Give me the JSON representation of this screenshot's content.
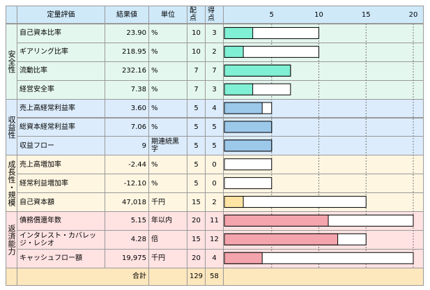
{
  "header": {
    "columns": [
      "定量評価",
      "結果値",
      "単位",
      "配点",
      "得点"
    ]
  },
  "chart": {
    "xlim": [
      0,
      20
    ],
    "xticks": [
      5,
      10,
      15,
      20
    ]
  },
  "groups": [
    {
      "label": "安全性",
      "fill": "#80f0d4",
      "background": "#e4f7ee",
      "rows": [
        {
          "item": "自己資本比率",
          "result": "23.90",
          "unit": "%",
          "max": 10,
          "score": 3
        },
        {
          "item": "ギアリング比率",
          "result": "218.95",
          "unit": "%",
          "max": 10,
          "score": 2
        },
        {
          "item": "流動比率",
          "result": "232.16",
          "unit": "%",
          "max": 7,
          "score": 7
        },
        {
          "item": "経営安全率",
          "result": "7.38",
          "unit": "%",
          "max": 7,
          "score": 3
        }
      ]
    },
    {
      "label": "収益性",
      "fill": "#9cc8ea",
      "background": "#dcecfc",
      "rows": [
        {
          "item": "売上高経常利益率",
          "result": "3.60",
          "unit": "%",
          "max": 5,
          "score": 4
        },
        {
          "item": "総資本経常利益率",
          "result": "7.06",
          "unit": "%",
          "max": 5,
          "score": 5
        },
        {
          "item": "収益フロー",
          "result": "9",
          "unit": "期連続黒字",
          "max": 5,
          "score": 5
        }
      ]
    },
    {
      "label": "成長性・規模",
      "fill": "#ffe4a4",
      "background": "#fff6e2",
      "rows": [
        {
          "item": "売上高増加率",
          "result": "-2.44",
          "unit": "%",
          "max": 5,
          "score": 0
        },
        {
          "item": "経常利益増加率",
          "result": "-12.10",
          "unit": "%",
          "max": 5,
          "score": 0
        },
        {
          "item": "自己資本額",
          "result": "47,018",
          "unit": "千円",
          "max": 15,
          "score": 2
        }
      ]
    },
    {
      "label": "返済能力",
      "fill": "#f4a4ac",
      "background": "#ffe2e2",
      "rows": [
        {
          "item": "債務償還年数",
          "result": "5.15",
          "unit": "年以内",
          "max": 20,
          "score": 11
        },
        {
          "item": "インタレスト・カバレッジ・レシオ",
          "result": "4.28",
          "unit": "倍",
          "max": 15,
          "score": 12
        },
        {
          "item": "キャッシュフロー額",
          "result": "19,975",
          "unit": "千円",
          "max": 20,
          "score": 4
        }
      ]
    }
  ],
  "total": {
    "label": "合計",
    "max": 129,
    "score": 58
  }
}
